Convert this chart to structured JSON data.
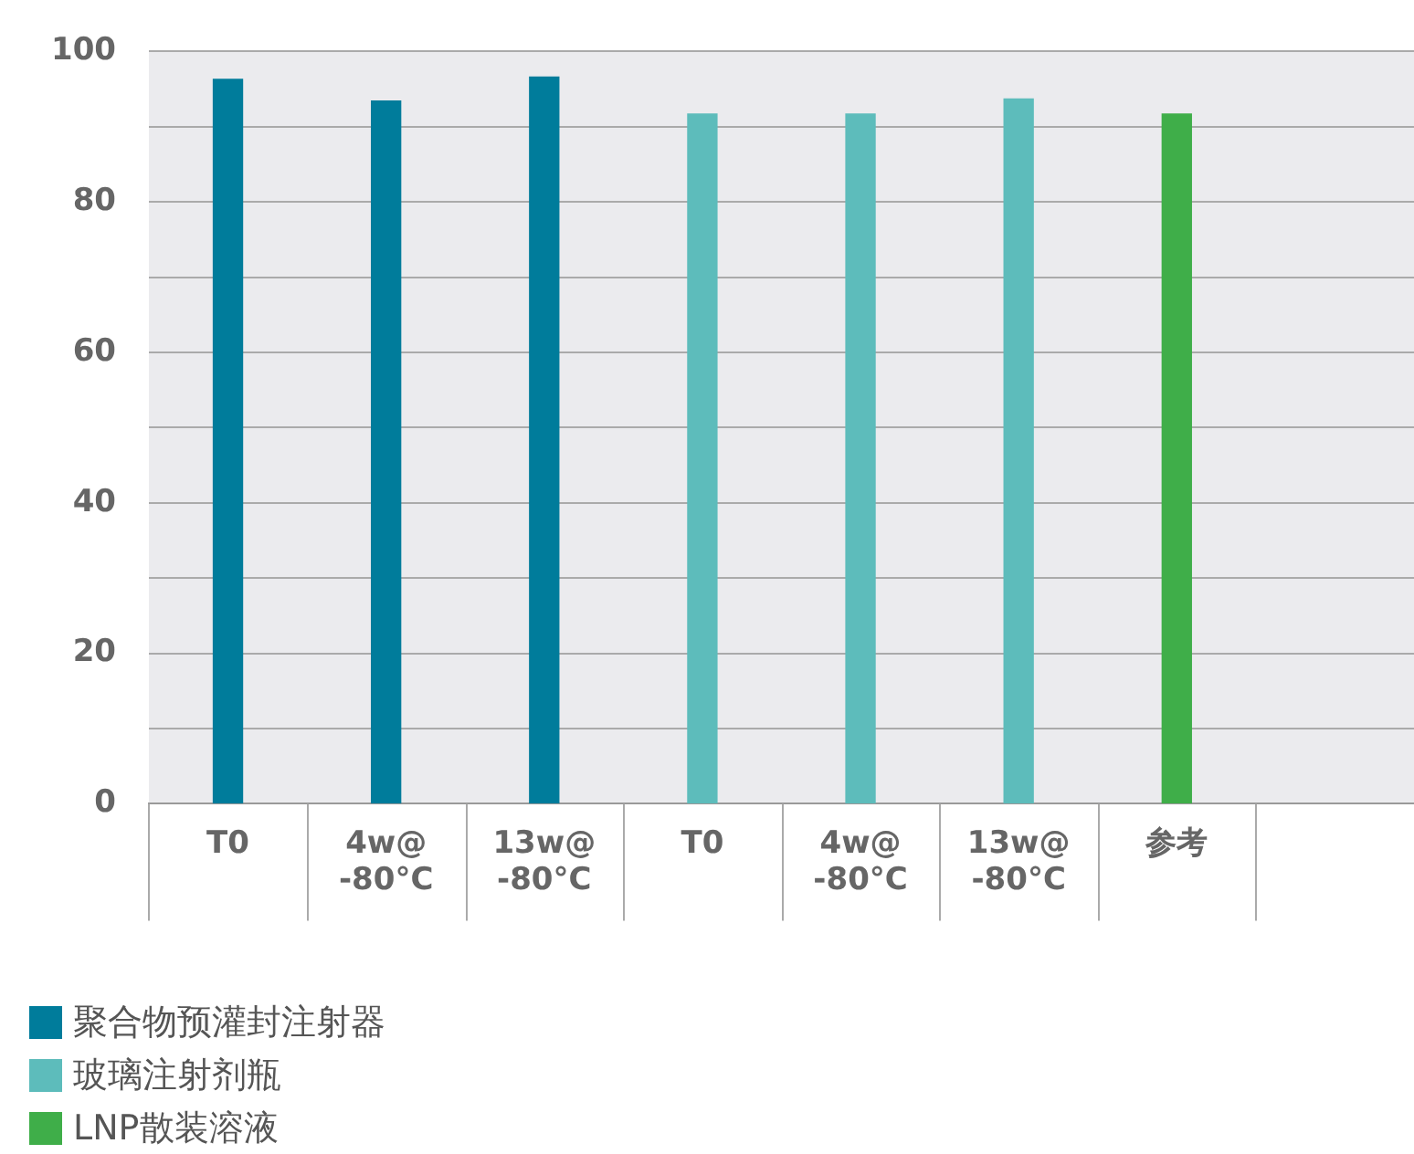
{
  "chart_data": {
    "type": "bar",
    "categories": [
      "T0",
      "4w@\n-80°C",
      "13w@\n-80°C",
      "T0",
      "4w@\n-80°C",
      "13w@\n-80°C",
      "参考",
      null
    ],
    "series": [
      {
        "name": "聚合物预灌封注射器",
        "color": "#007c9b",
        "values": [
          96.3,
          93.4,
          96.6,
          null,
          null,
          null,
          null,
          null
        ]
      },
      {
        "name": "玻璃注射剂瓶",
        "color": "#5dbcbb",
        "values": [
          null,
          null,
          null,
          91.7,
          91.7,
          93.7,
          null,
          null
        ]
      },
      {
        "name": "LNP散装溶液",
        "color": "#3fae49",
        "values": [
          null,
          null,
          null,
          null,
          null,
          null,
          91.7,
          null
        ]
      }
    ],
    "ylim": [
      0,
      100
    ],
    "yticks": [
      0,
      {
        "value": 10,
        "label": null
      },
      20,
      {
        "value": 30,
        "label": null
      },
      40,
      {
        "value": 50,
        "label": null
      },
      60,
      {
        "value": 70,
        "label": null
      },
      80,
      {
        "value": 90,
        "label": null
      },
      100
    ],
    "grid": "y",
    "legend": "bottom left"
  }
}
